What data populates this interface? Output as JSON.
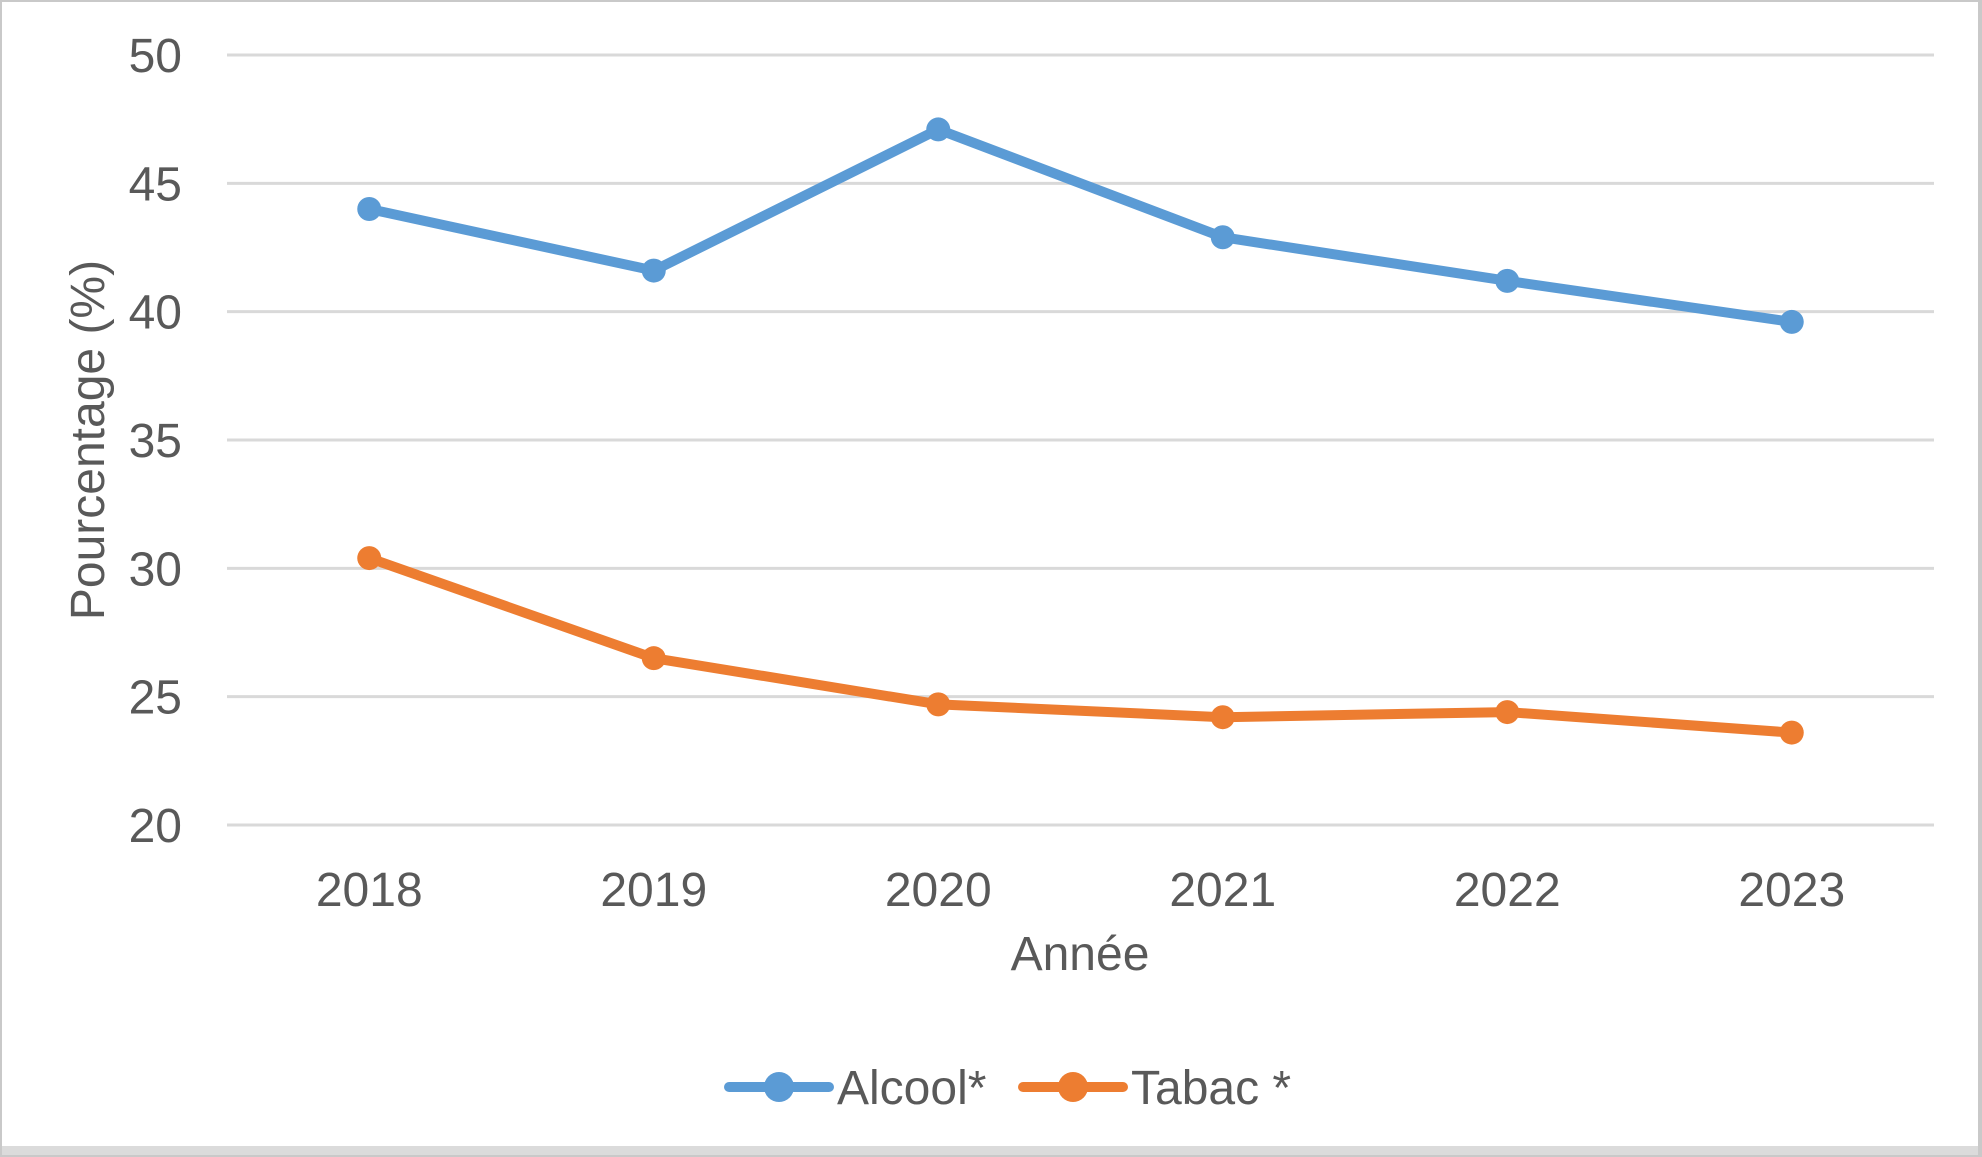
{
  "chart_data": {
    "type": "line",
    "title": "",
    "categories": [
      "2018",
      "2019",
      "2020",
      "2021",
      "2022",
      "2023"
    ],
    "series": [
      {
        "name": "Alcool*",
        "color": "#5B9BD5",
        "values": [
          44.0,
          41.6,
          47.1,
          42.9,
          41.2,
          39.6
        ]
      },
      {
        "name": "Tabac *",
        "color": "#ED7D31",
        "values": [
          30.4,
          26.5,
          24.7,
          24.2,
          24.4,
          23.6
        ]
      }
    ],
    "xlabel": "Année",
    "ylabel": "Pourcentage (%)",
    "ylim": [
      20,
      50
    ],
    "yticks": [
      20,
      25,
      30,
      35,
      40,
      45,
      50
    ],
    "grid": true,
    "legend_position": "bottom",
    "marker": "circle"
  },
  "styles": {
    "text_color": "#595959",
    "gridline_color": "#D9D9D9",
    "background_color": "#FFFFFF",
    "border_color": "#C9C9C9"
  }
}
